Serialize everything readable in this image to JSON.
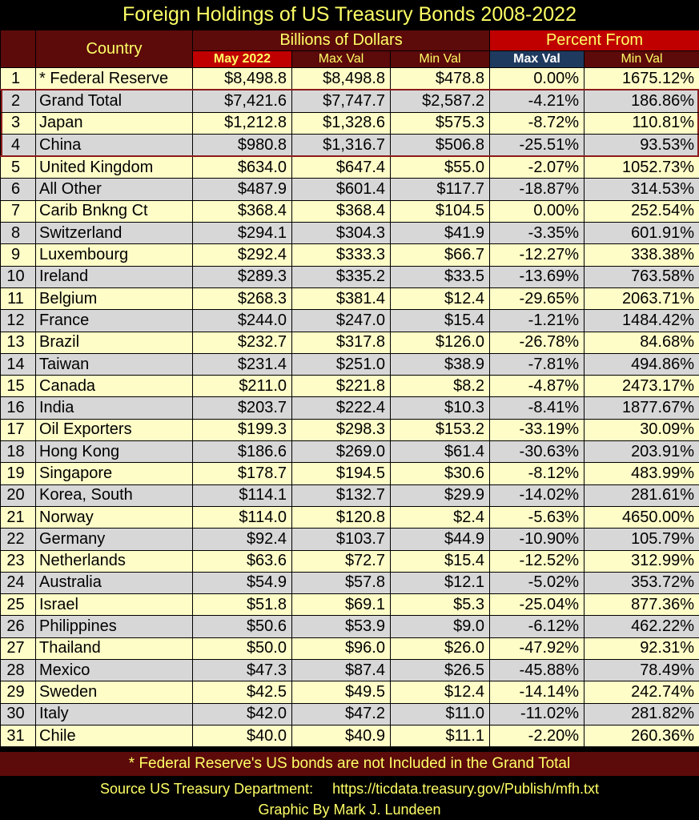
{
  "chart_data": {
    "type": "table",
    "title": "Foreign Holdings of US Treasury Bonds 2008-2022",
    "header": {
      "country": "Country",
      "billions_group": "Billions of Dollars",
      "percent_group": "Percent From",
      "columns": [
        "May 2022",
        "Max Val",
        "Min Val",
        "Max Val",
        "Min Val"
      ]
    },
    "rows": [
      {
        "rank": "1",
        "country": "* Federal Reserve",
        "may": "$8,498.8",
        "max": "$8,498.8",
        "min": "$478.8",
        "pmax": "0.00%",
        "pmin": "1675.12%"
      },
      {
        "rank": "2",
        "country": "Grand Total",
        "may": "$7,421.6",
        "max": "$7,747.7",
        "min": "$2,587.2",
        "pmax": "-4.21%",
        "pmin": "186.86%"
      },
      {
        "rank": "3",
        "country": "Japan",
        "may": "$1,212.8",
        "max": "$1,328.6",
        "min": "$575.3",
        "pmax": "-8.72%",
        "pmin": "110.81%"
      },
      {
        "rank": "4",
        "country": "China",
        "may": "$980.8",
        "max": "$1,316.7",
        "min": "$506.8",
        "pmax": "-25.51%",
        "pmin": "93.53%"
      },
      {
        "rank": "5",
        "country": "United Kingdom",
        "may": "$634.0",
        "max": "$647.4",
        "min": "$55.0",
        "pmax": "-2.07%",
        "pmin": "1052.73%"
      },
      {
        "rank": "6",
        "country": "All Other",
        "may": "$487.9",
        "max": "$601.4",
        "min": "$117.7",
        "pmax": "-18.87%",
        "pmin": "314.53%"
      },
      {
        "rank": "7",
        "country": "Carib Bnkng Ct",
        "may": "$368.4",
        "max": "$368.4",
        "min": "$104.5",
        "pmax": "0.00%",
        "pmin": "252.54%"
      },
      {
        "rank": "8",
        "country": "Switzerland",
        "may": "$294.1",
        "max": "$304.3",
        "min": "$41.9",
        "pmax": "-3.35%",
        "pmin": "601.91%"
      },
      {
        "rank": "9",
        "country": "Luxembourg",
        "may": "$292.4",
        "max": "$333.3",
        "min": "$66.7",
        "pmax": "-12.27%",
        "pmin": "338.38%"
      },
      {
        "rank": "10",
        "country": "Ireland",
        "may": "$289.3",
        "max": "$335.2",
        "min": "$33.5",
        "pmax": "-13.69%",
        "pmin": "763.58%"
      },
      {
        "rank": "11",
        "country": "Belgium",
        "may": "$268.3",
        "max": "$381.4",
        "min": "$12.4",
        "pmax": "-29.65%",
        "pmin": "2063.71%"
      },
      {
        "rank": "12",
        "country": "France",
        "may": "$244.0",
        "max": "$247.0",
        "min": "$15.4",
        "pmax": "-1.21%",
        "pmin": "1484.42%"
      },
      {
        "rank": "13",
        "country": "Brazil",
        "may": "$232.7",
        "max": "$317.8",
        "min": "$126.0",
        "pmax": "-26.78%",
        "pmin": "84.68%"
      },
      {
        "rank": "14",
        "country": "Taiwan",
        "may": "$231.4",
        "max": "$251.0",
        "min": "$38.9",
        "pmax": "-7.81%",
        "pmin": "494.86%"
      },
      {
        "rank": "15",
        "country": "Canada",
        "may": "$211.0",
        "max": "$221.8",
        "min": "$8.2",
        "pmax": "-4.87%",
        "pmin": "2473.17%"
      },
      {
        "rank": "16",
        "country": "India",
        "may": "$203.7",
        "max": "$222.4",
        "min": "$10.3",
        "pmax": "-8.41%",
        "pmin": "1877.67%"
      },
      {
        "rank": "17",
        "country": "Oil Exporters",
        "may": "$199.3",
        "max": "$298.3",
        "min": "$153.2",
        "pmax": "-33.19%",
        "pmin": "30.09%"
      },
      {
        "rank": "18",
        "country": "Hong Kong",
        "may": "$186.6",
        "max": "$269.0",
        "min": "$61.4",
        "pmax": "-30.63%",
        "pmin": "203.91%"
      },
      {
        "rank": "19",
        "country": "Singapore",
        "may": "$178.7",
        "max": "$194.5",
        "min": "$30.6",
        "pmax": "-8.12%",
        "pmin": "483.99%"
      },
      {
        "rank": "20",
        "country": "Korea, South",
        "may": "$114.1",
        "max": "$132.7",
        "min": "$29.9",
        "pmax": "-14.02%",
        "pmin": "281.61%"
      },
      {
        "rank": "21",
        "country": "Norway",
        "may": "$114.0",
        "max": "$120.8",
        "min": "$2.4",
        "pmax": "-5.63%",
        "pmin": "4650.00%"
      },
      {
        "rank": "22",
        "country": "Germany",
        "may": "$92.4",
        "max": "$103.7",
        "min": "$44.9",
        "pmax": "-10.90%",
        "pmin": "105.79%"
      },
      {
        "rank": "23",
        "country": "Netherlands",
        "may": "$63.6",
        "max": "$72.7",
        "min": "$15.4",
        "pmax": "-12.52%",
        "pmin": "312.99%"
      },
      {
        "rank": "24",
        "country": "Australia",
        "may": "$54.9",
        "max": "$57.8",
        "min": "$12.1",
        "pmax": "-5.02%",
        "pmin": "353.72%"
      },
      {
        "rank": "25",
        "country": "Israel",
        "may": "$51.8",
        "max": "$69.1",
        "min": "$5.3",
        "pmax": "-25.04%",
        "pmin": "877.36%"
      },
      {
        "rank": "26",
        "country": "Philippines",
        "may": "$50.6",
        "max": "$53.9",
        "min": "$9.0",
        "pmax": "-6.12%",
        "pmin": "462.22%"
      },
      {
        "rank": "27",
        "country": "Thailand",
        "may": "$50.0",
        "max": "$96.0",
        "min": "$26.0",
        "pmax": "-47.92%",
        "pmin": "92.31%"
      },
      {
        "rank": "28",
        "country": "Mexico",
        "may": "$47.3",
        "max": "$87.4",
        "min": "$26.5",
        "pmax": "-45.88%",
        "pmin": "78.49%"
      },
      {
        "rank": "29",
        "country": "Sweden",
        "may": "$42.5",
        "max": "$49.5",
        "min": "$12.4",
        "pmax": "-14.14%",
        "pmin": "242.74%"
      },
      {
        "rank": "30",
        "country": "Italy",
        "may": "$42.0",
        "max": "$47.2",
        "min": "$11.0",
        "pmax": "-11.02%",
        "pmin": "281.82%"
      },
      {
        "rank": "31",
        "country": "Chile",
        "may": "$40.0",
        "max": "$40.9",
        "min": "$11.1",
        "pmax": "-2.20%",
        "pmin": "260.36%"
      }
    ],
    "footnote": "* Federal Reserve's US bonds are not Included in the Grand Total",
    "source_label": "Source US Treasury Department:",
    "source_url": "https://ticdata.treasury.gov/Publish/mfh.txt",
    "byline": "Graphic By Mark J. Lundeen",
    "colors": {
      "title_text": "#ffff66",
      "header_bg": "#5c0a0a",
      "percent_header_bg": "#c00000",
      "row_light": "#fefdc8",
      "row_grey": "#d7d7d7",
      "highlight_box": "#8b1a1a"
    }
  }
}
